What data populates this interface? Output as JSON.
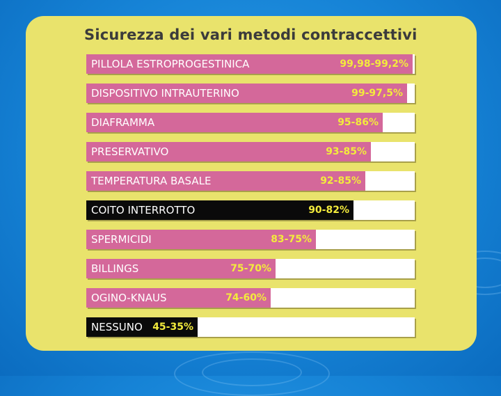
{
  "slide": {
    "title": "Sicurezza dei vari metodi contraccettivi"
  },
  "colors": {
    "background": "#1683d6",
    "card": "#e9e36c",
    "bar_pink": "#d4689a",
    "bar_dark": "#0a0a0a",
    "value_text": "#f3eb3c",
    "track": "#ffffff"
  },
  "chart_data": {
    "type": "bar",
    "orientation": "horizontal",
    "title": "Sicurezza dei vari metodi contraccettivi",
    "xlim": [
      0,
      100
    ],
    "grid": false,
    "legend": "none",
    "categories": [
      "PILLOLA ESTROPROGESTINICA",
      "DISPOSITIVO INTRAUTERINO",
      "DIAFRAMMA",
      "PRESERVATIVO",
      "TEMPERATURA BASALE",
      "COITO INTERROTTO",
      "SPERMICIDI",
      "BILLINGS",
      "OGINO-KNAUS",
      "NESSUNO"
    ],
    "value_labels": [
      "99,98-99,2%",
      "99-97,5%",
      "95-86%",
      "93-85%",
      "92-85%",
      "90-82%",
      "83-75%",
      "75-70%",
      "74-60%",
      "45-35%"
    ],
    "values": [
      99.98,
      99,
      95,
      93,
      92,
      90,
      83,
      75,
      74,
      45
    ],
    "highlight": [
      false,
      false,
      false,
      false,
      false,
      true,
      false,
      false,
      false,
      true
    ]
  }
}
